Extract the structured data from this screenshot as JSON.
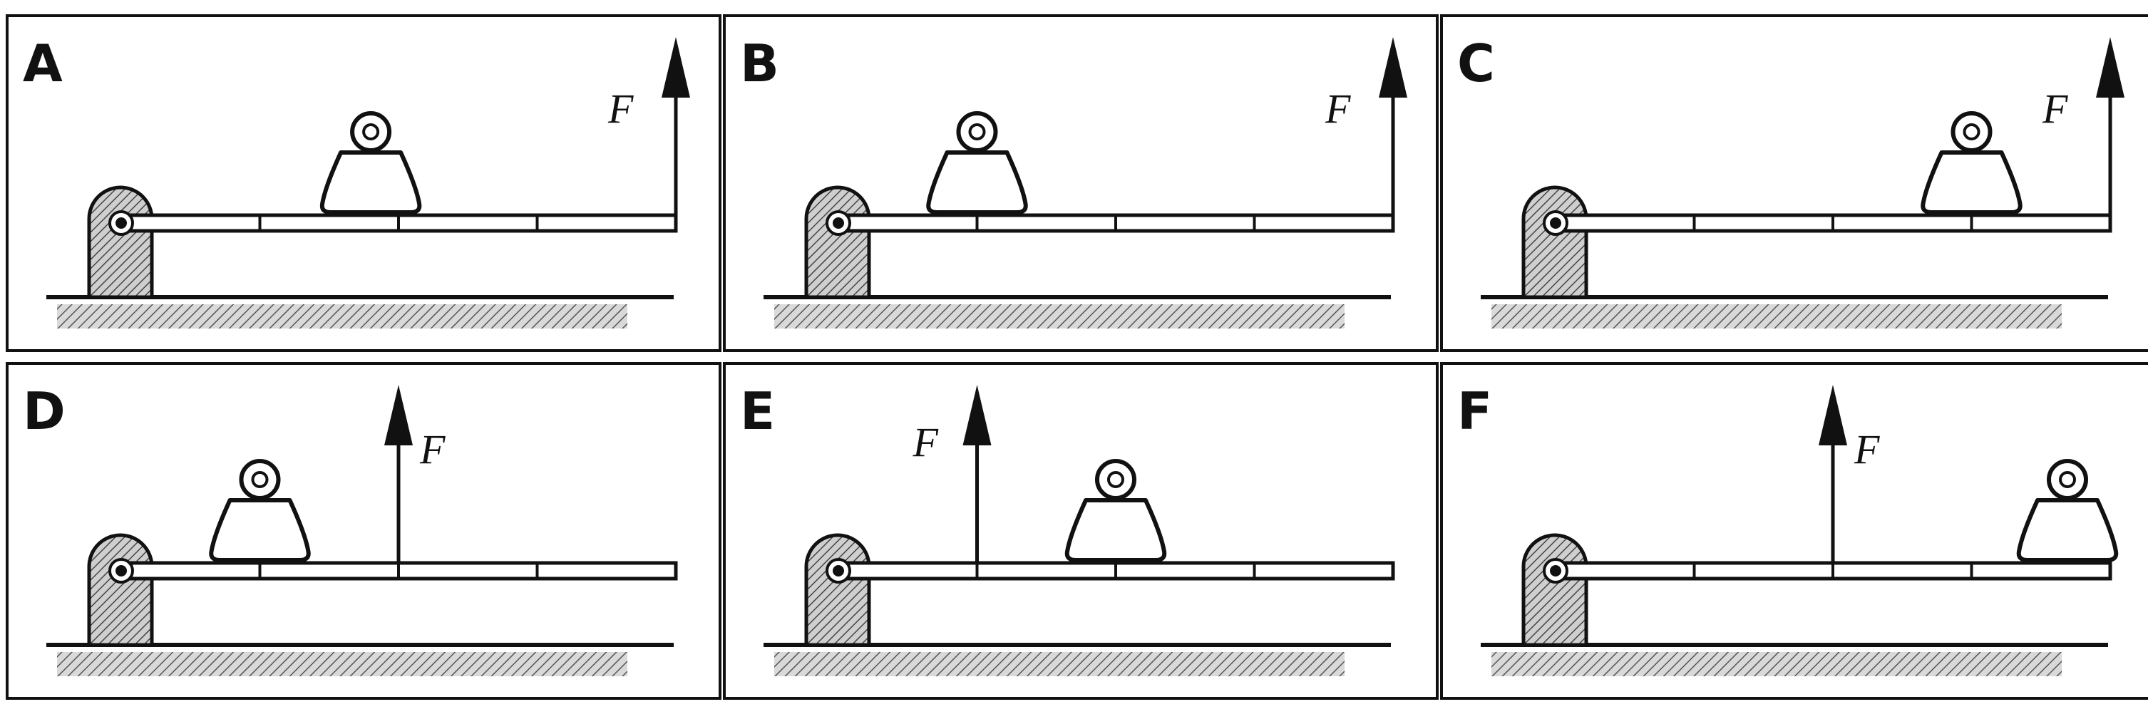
{
  "force_label": "F",
  "rod_segments": 4,
  "panels": [
    {
      "id": "A",
      "label": "A",
      "weight_position": 0.45,
      "force_position": 1.0
    },
    {
      "id": "B",
      "label": "B",
      "weight_position": 0.25,
      "force_position": 1.0
    },
    {
      "id": "C",
      "label": "C",
      "weight_position": 0.75,
      "force_position": 1.0
    },
    {
      "id": "D",
      "label": "D",
      "weight_position": 0.25,
      "force_position": 0.5
    },
    {
      "id": "E",
      "label": "E",
      "weight_position": 0.5,
      "force_position": 0.25
    },
    {
      "id": "F",
      "label": "F",
      "weight_position": 1.0,
      "force_position": 0.5
    }
  ],
  "colors": {
    "ink": "#111111",
    "paper": "#ffffff"
  }
}
